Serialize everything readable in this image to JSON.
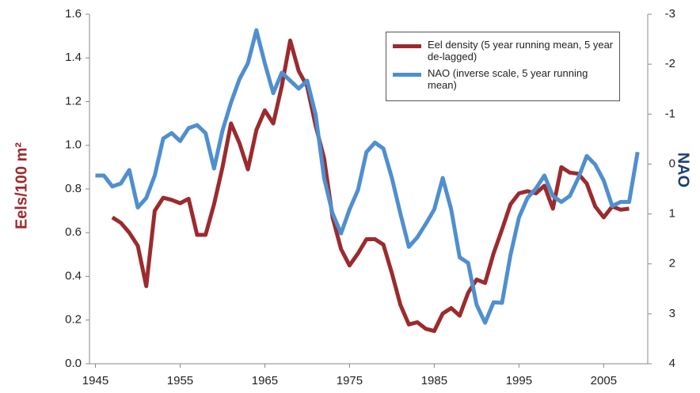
{
  "chart_data": {
    "type": "line",
    "y_label": "Eels/100 m²",
    "y2_label": "NAO",
    "xlim": [
      1944.3,
      2010.2
    ],
    "xticks": [
      1945,
      1955,
      1965,
      1975,
      1985,
      1995,
      2005
    ],
    "ylim": [
      0,
      1.6
    ],
    "yticks": [
      {
        "value": 0,
        "label": "0.0"
      },
      0.2,
      0.4,
      0.6,
      0.8,
      {
        "value": 1,
        "label": "1.0"
      },
      1.2,
      1.4,
      1.6
    ],
    "y2lim": [
      4,
      -3
    ],
    "y2ticks": [
      -3,
      -2,
      -1,
      0,
      1,
      2,
      3,
      4
    ],
    "grid": false,
    "legend": "top-right",
    "series": [
      {
        "name": "Eel density (5 year running mean, 5 year de-lagged)",
        "color": "#9b2b2e",
        "x": [
          1947,
          1948,
          1949,
          1950,
          1951,
          1952,
          1953,
          1954,
          1955,
          1956,
          1957,
          1958,
          1959,
          1960,
          1961,
          1962,
          1963,
          1964,
          1965,
          1966,
          1967,
          1968,
          1969,
          1970,
          1971,
          1972,
          1973,
          1974,
          1975,
          1976,
          1977,
          1978,
          1979,
          1980,
          1981,
          1982,
          1983,
          1984,
          1985,
          1986,
          1987,
          1988,
          1989,
          1990,
          1991,
          1992,
          1993,
          1994,
          1995,
          1996,
          1997,
          1998,
          1999,
          2000,
          2001,
          2002,
          2003,
          2004,
          2005,
          2006,
          2007,
          2008
        ],
        "values": [
          0.67,
          0.645,
          0.6,
          0.54,
          0.355,
          0.7,
          0.76,
          0.75,
          0.735,
          0.755,
          0.59,
          0.59,
          0.73,
          0.9,
          1.1,
          1.01,
          0.89,
          1.07,
          1.16,
          1.1,
          1.27,
          1.48,
          1.34,
          1.27,
          1.09,
          0.94,
          0.67,
          0.525,
          0.45,
          0.505,
          0.57,
          0.57,
          0.545,
          0.415,
          0.27,
          0.18,
          0.19,
          0.16,
          0.15,
          0.23,
          0.255,
          0.22,
          0.325,
          0.385,
          0.37,
          0.505,
          0.615,
          0.73,
          0.78,
          0.79,
          0.78,
          0.815,
          0.71,
          0.9,
          0.875,
          0.87,
          0.825,
          0.72,
          0.67,
          0.72,
          0.705,
          0.71
        ]
      },
      {
        "name": "NAO (inverse scale, 5 year running mean)",
        "color": "#4f8fcf",
        "axis": "y2",
        "x": [
          1945,
          1946,
          1947,
          1948,
          1949,
          1950,
          1951,
          1952,
          1953,
          1954,
          1955,
          1956,
          1957,
          1958,
          1959,
          1960,
          1961,
          1962,
          1963,
          1964,
          1965,
          1966,
          1967,
          1968,
          1969,
          1970,
          1971,
          1972,
          1973,
          1974,
          1975,
          1976,
          1977,
          1978,
          1979,
          1980,
          1981,
          1982,
          1983,
          1984,
          1985,
          1986,
          1987,
          1988,
          1989,
          1990,
          1991,
          1992,
          1993,
          1994,
          1995,
          1996,
          1997,
          1998,
          1999,
          2000,
          2001,
          2002,
          2003,
          2004,
          2005,
          2006,
          2007,
          2008,
          2009
        ],
        "values": [
          0.23,
          0.23,
          0.45,
          0.39,
          0.12,
          0.87,
          0.68,
          0.23,
          -0.51,
          -0.62,
          -0.46,
          -0.72,
          -0.78,
          -0.62,
          0.09,
          -0.67,
          -1.23,
          -1.7,
          -2.02,
          -2.68,
          -2.02,
          -1.42,
          -1.83,
          -1.67,
          -1.51,
          -1.67,
          -0.99,
          0.28,
          0.99,
          1.39,
          0.91,
          0.52,
          -0.24,
          -0.43,
          -0.31,
          0.28,
          0.99,
          1.66,
          1.47,
          1.2,
          0.91,
          0.28,
          0.91,
          1.87,
          1.98,
          2.82,
          3.18,
          2.77,
          2.78,
          1.82,
          1.07,
          0.68,
          0.49,
          0.23,
          0.64,
          0.76,
          0.64,
          0.28,
          -0.16,
          0.01,
          0.33,
          0.84,
          0.76,
          0.76,
          -0.24
        ]
      }
    ]
  }
}
